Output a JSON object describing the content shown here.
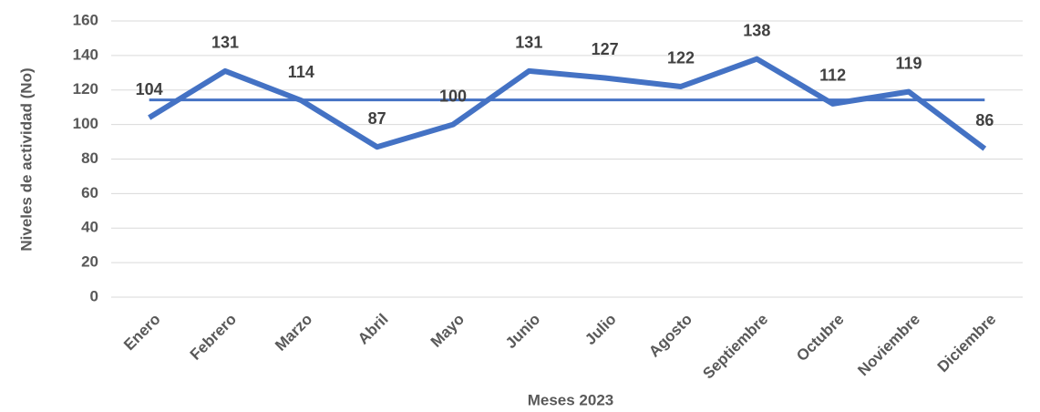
{
  "chart_data": {
    "type": "line",
    "x_label": "Meses 2023",
    "y_label": "Niveles de actividad (No)",
    "categories": [
      "Enero",
      "Febrero",
      "Marzo",
      "Abril",
      "Mayo",
      "Junio",
      "Julio",
      "Agosto",
      "Septiembre",
      "Octubre",
      "Noviembre",
      "Diciembre"
    ],
    "series": [
      {
        "color": "#4472c4",
        "values": [
          104,
          131,
          114,
          87,
          100,
          131,
          127,
          122,
          138,
          112,
          119,
          86
        ],
        "labels": true
      },
      {
        "color": "#4472c4",
        "values": [
          114.25,
          114.25,
          114.25,
          114.25,
          114.25,
          114.25,
          114.25,
          114.25,
          114.25,
          114.25,
          114.25,
          114.25
        ],
        "labels": false
      }
    ],
    "ylim": [
      0,
      160
    ],
    "yticks": [
      0,
      20,
      40,
      60,
      80,
      100,
      120,
      140,
      160
    ],
    "grid": true
  }
}
